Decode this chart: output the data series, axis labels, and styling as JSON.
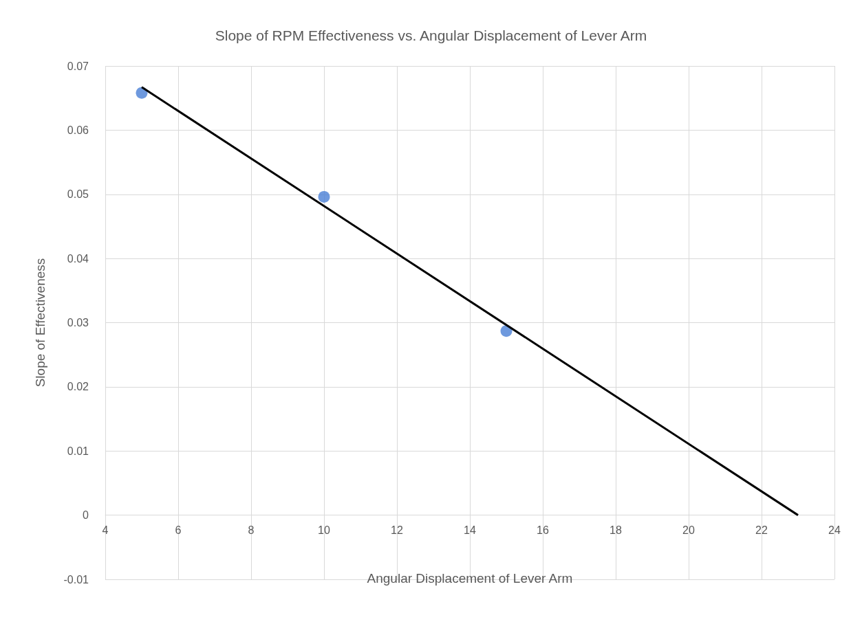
{
  "chart_data": {
    "type": "scatter",
    "title": "Slope of RPM Effectiveness vs. Angular Displacement of Lever Arm",
    "xlabel": "Angular Displacement of Lever Arm",
    "ylabel": "Slope of Effectiveness",
    "series": [
      {
        "color": "#4a7fd6",
        "marker": "circle",
        "x": [
          5,
          10,
          15
        ],
        "values": [
          0.0658,
          0.0496,
          0.0287
        ]
      },
      {
        "type": "line",
        "color": "#000000",
        "marker": "none",
        "x": [
          5,
          23
        ],
        "values": [
          0.0667,
          0
        ]
      }
    ],
    "xlim": [
      4,
      24
    ],
    "xticks": [
      4,
      6,
      8,
      10,
      12,
      14,
      16,
      18,
      20,
      22,
      24
    ],
    "ylim": [
      -0.01,
      0.07
    ],
    "yticks": [
      -0.01,
      0,
      0.01,
      0.02,
      0.03,
      0.04,
      0.05,
      0.06,
      0.07
    ],
    "grid": true
  }
}
